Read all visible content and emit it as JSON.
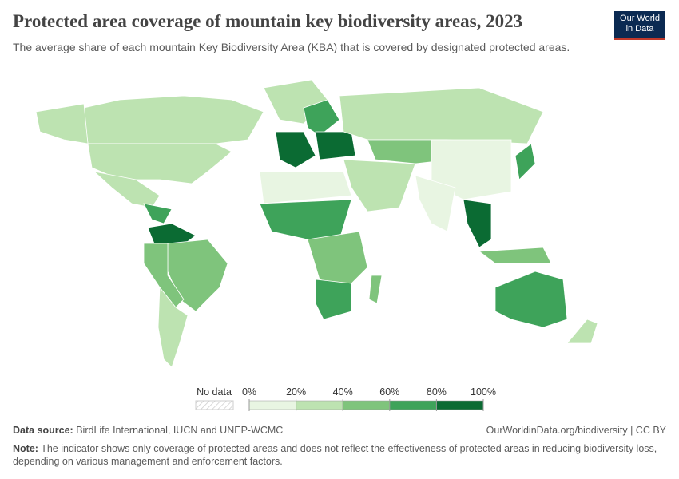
{
  "header": {
    "title": "Protected area coverage of mountain key biodiversity areas, 2023",
    "subtitle": "The average share of each mountain Key Biodiversity Area (KBA) that is covered by designated protected areas.",
    "logo": [
      "Our World",
      "in Data"
    ]
  },
  "chart_data": {
    "type": "choropleth",
    "values": [
      30,
      30,
      30,
      25,
      25,
      70,
      90,
      55,
      40,
      35,
      90,
      75,
      90,
      30,
      55,
      30,
      15,
      70,
      45,
      65,
      45,
      10,
      10,
      85,
      70,
      40,
      70,
      30
    ],
    "legend": {
      "no_data": "No data",
      "ticks": [
        {
          "value": 0,
          "label": "0%"
        },
        {
          "value": 20,
          "label": "20%"
        },
        {
          "value": 40,
          "label": "40%"
        },
        {
          "value": 60,
          "label": "60%"
        },
        {
          "value": 80,
          "label": "80%"
        },
        {
          "value": 100,
          "label": "100%"
        }
      ],
      "colors": [
        "#e8f5e2",
        "#bde3b1",
        "#7fc47c",
        "#3ea35a",
        "#0b6b33"
      ]
    }
  },
  "footer": {
    "source_label": "Data source:",
    "source": "BirdLife International, IUCN and UNEP-WCMC",
    "url": "OurWorldinData.org/biodiversity | CC BY",
    "note_label": "Note:",
    "note": "The indicator shows only coverage of protected areas and does not reflect the effectiveness of protected areas in reducing biodiversity loss, depending on various management and enforcement factors."
  }
}
